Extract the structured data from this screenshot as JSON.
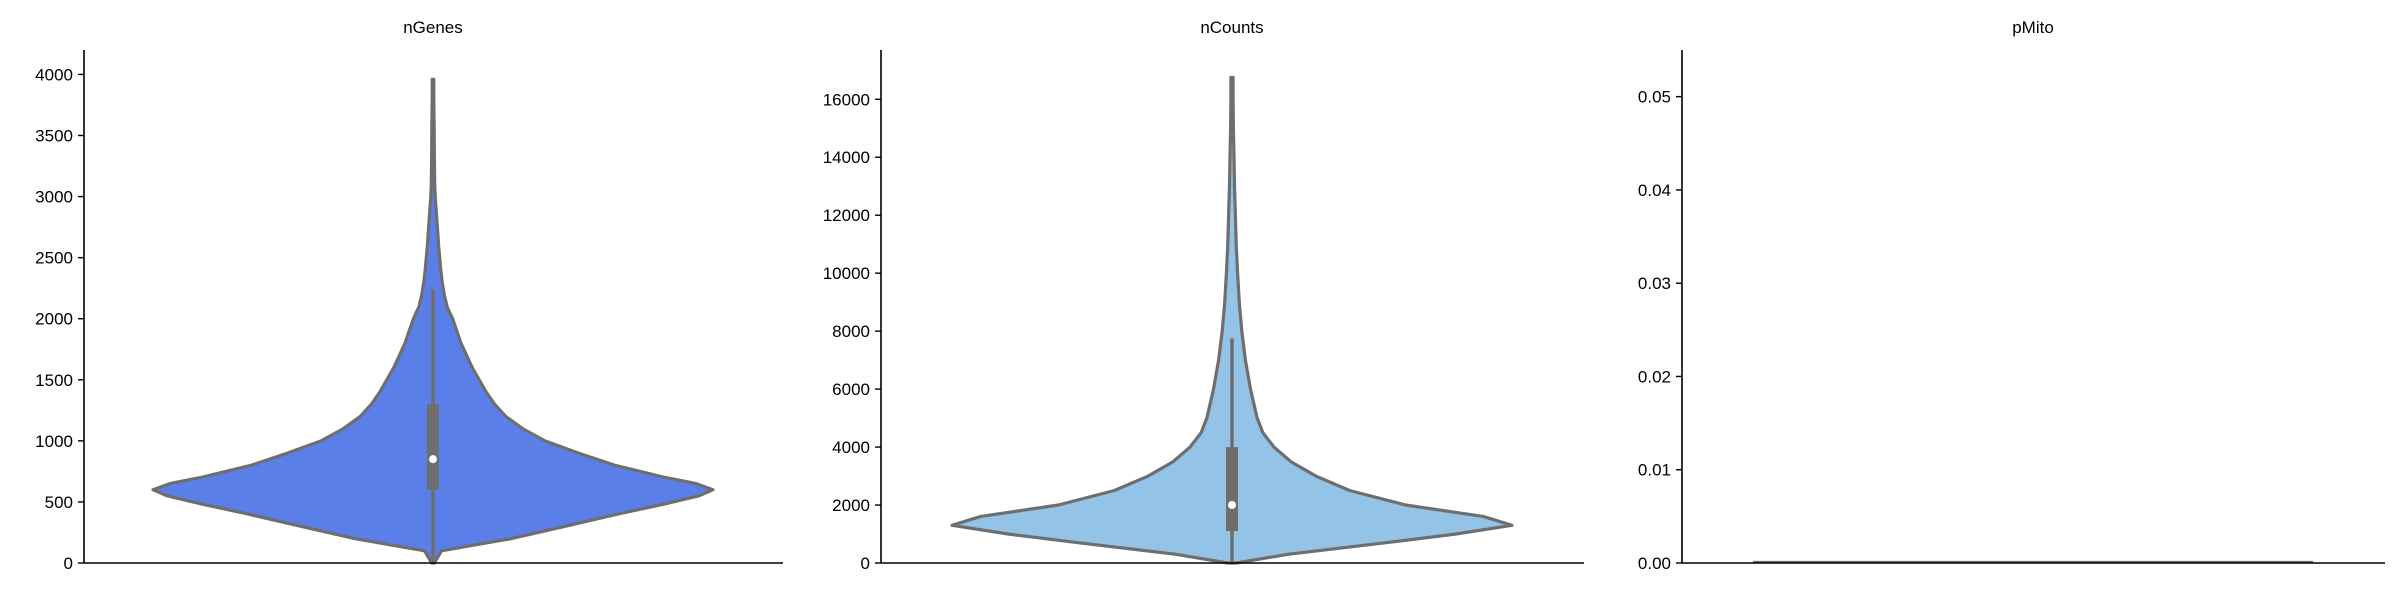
{
  "chart_data": [
    {
      "type": "violin",
      "title": "nGenes",
      "color": "#5b7fe9",
      "line_color": "#6e6e6e",
      "ylim": [
        0,
        4200
      ],
      "yticks": [
        0,
        500,
        1000,
        1500,
        2000,
        2500,
        3000,
        3500,
        4000
      ],
      "ytick_labels": [
        "0",
        "500",
        "1000",
        "1500",
        "2000",
        "2500",
        "3000",
        "3500",
        "4000"
      ],
      "grid": false,
      "summary": {
        "median": 850,
        "q1": 600,
        "q3": 1300,
        "whisker_low": 0,
        "whisker_high": 2240,
        "min": 0,
        "max": 3960
      },
      "density": [
        [
          0,
          0.005
        ],
        [
          100,
          0.03
        ],
        [
          200,
          0.28
        ],
        [
          300,
          0.47
        ],
        [
          400,
          0.66
        ],
        [
          480,
          0.82
        ],
        [
          550,
          0.95
        ],
        [
          600,
          1.0
        ],
        [
          650,
          0.94
        ],
        [
          700,
          0.83
        ],
        [
          800,
          0.65
        ],
        [
          900,
          0.52
        ],
        [
          1000,
          0.4
        ],
        [
          1100,
          0.32
        ],
        [
          1200,
          0.26
        ],
        [
          1300,
          0.22
        ],
        [
          1400,
          0.19
        ],
        [
          1500,
          0.165
        ],
        [
          1600,
          0.14
        ],
        [
          1700,
          0.12
        ],
        [
          1800,
          0.1
        ],
        [
          1900,
          0.085
        ],
        [
          2000,
          0.07
        ],
        [
          2100,
          0.05
        ],
        [
          2200,
          0.04
        ],
        [
          2300,
          0.033
        ],
        [
          2400,
          0.028
        ],
        [
          2500,
          0.024
        ],
        [
          2600,
          0.02
        ],
        [
          2700,
          0.017
        ],
        [
          2800,
          0.014
        ],
        [
          2900,
          0.011
        ],
        [
          3000,
          0.008
        ],
        [
          3100,
          0.006
        ],
        [
          3300,
          0.005
        ],
        [
          3600,
          0.004
        ],
        [
          3800,
          0.003
        ],
        [
          3960,
          0.003
        ]
      ]
    },
    {
      "type": "violin",
      "title": "nCounts",
      "color": "#93c3e6",
      "line_color": "#6e6e6e",
      "ylim": [
        0,
        17700
      ],
      "yticks": [
        0,
        2000,
        4000,
        6000,
        8000,
        10000,
        12000,
        14000,
        16000
      ],
      "ytick_labels": [
        "0",
        "2000",
        "4000",
        "6000",
        "8000",
        "10000",
        "12000",
        "14000",
        "16000"
      ],
      "grid": false,
      "summary": {
        "median": 2000,
        "q1": 1100,
        "q3": 4000,
        "whisker_low": 0,
        "whisker_high": 7750,
        "min": 0,
        "max": 16750
      },
      "density": [
        [
          0,
          0.015
        ],
        [
          300,
          0.2
        ],
        [
          700,
          0.55
        ],
        [
          1000,
          0.8
        ],
        [
          1300,
          1.0
        ],
        [
          1600,
          0.9
        ],
        [
          2000,
          0.62
        ],
        [
          2500,
          0.42
        ],
        [
          3000,
          0.3
        ],
        [
          3500,
          0.21
        ],
        [
          4000,
          0.15
        ],
        [
          4500,
          0.11
        ],
        [
          5000,
          0.09
        ],
        [
          5500,
          0.078
        ],
        [
          6000,
          0.066
        ],
        [
          7000,
          0.048
        ],
        [
          8000,
          0.035
        ],
        [
          9000,
          0.026
        ],
        [
          10000,
          0.02
        ],
        [
          11000,
          0.015
        ],
        [
          12000,
          0.012
        ],
        [
          13000,
          0.009
        ],
        [
          14000,
          0.007
        ],
        [
          15000,
          0.005
        ],
        [
          16000,
          0.004
        ],
        [
          16750,
          0.004
        ]
      ]
    },
    {
      "type": "violin",
      "title": "pMito",
      "color": "#93c3e6",
      "line_color": "#6e6e6e",
      "ylim": [
        0,
        0.055
      ],
      "yticks": [
        0.0,
        0.01,
        0.02,
        0.03,
        0.04,
        0.05
      ],
      "ytick_labels": [
        "0.00",
        "0.01",
        "0.02",
        "0.03",
        "0.04",
        "0.05"
      ],
      "grid": false,
      "all_values": 0
    }
  ]
}
